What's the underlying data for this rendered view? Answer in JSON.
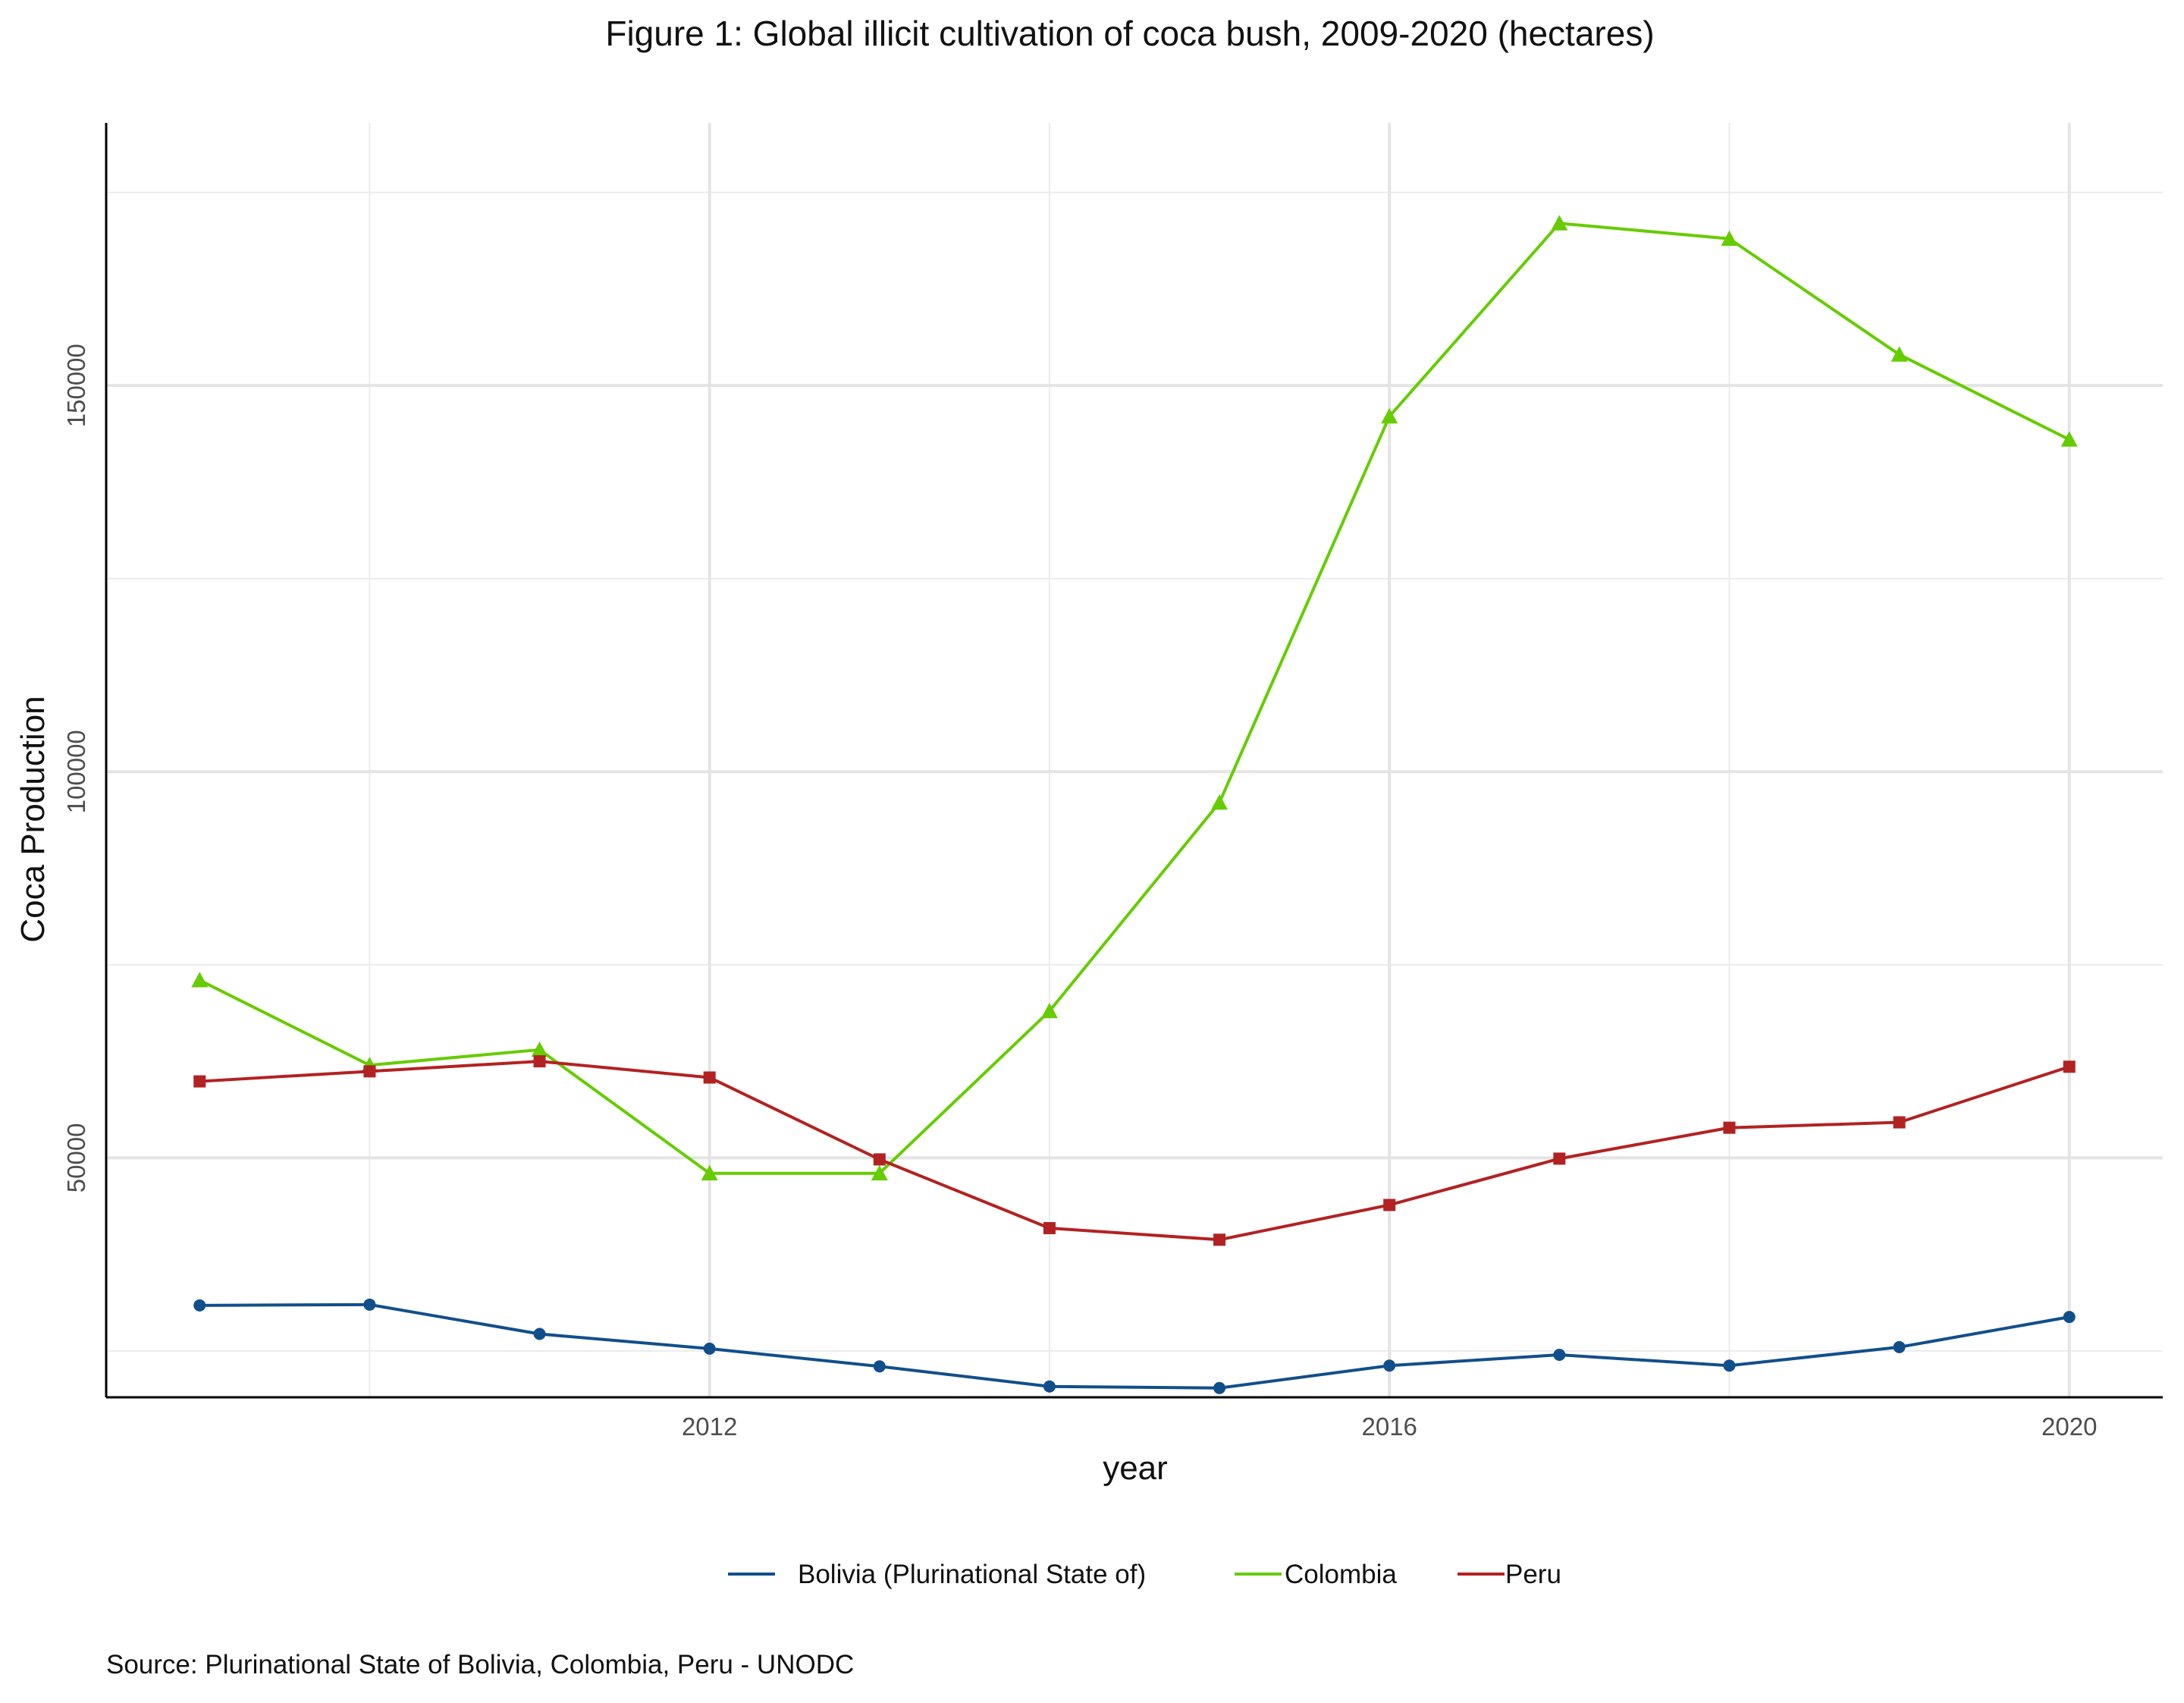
{
  "chart_data": {
    "type": "line",
    "title": "Figure 1: Global illicit cultivation of coca bush, 2009-2020 (hectares)",
    "xlabel": "year",
    "ylabel": "Coca Production",
    "x": [
      2009,
      2010,
      2011,
      2012,
      2013,
      2014,
      2015,
      2016,
      2017,
      2018,
      2019,
      2020
    ],
    "xlim": [
      2008.45,
      2020.55
    ],
    "ylim": [
      19000,
      184000
    ],
    "x_ticks": [
      2012,
      2016,
      2020
    ],
    "x_tick_labels": [
      "2012",
      "2016",
      "2020"
    ],
    "y_ticks": [
      50000,
      100000,
      150000
    ],
    "y_tick_labels": [
      "50000",
      "100000",
      "150000"
    ],
    "y_minor_ticks": [
      25000,
      75000,
      125000,
      175000
    ],
    "x_minor_ticks": [
      2010,
      2014,
      2018
    ],
    "grid": true,
    "legend_position": "bottom",
    "series": [
      {
        "name": "Bolivia (Plurinational State of)",
        "color": "#114f8a",
        "marker": "circle",
        "values": [
          30900,
          31000,
          27200,
          25300,
          23000,
          20400,
          20200,
          23100,
          24500,
          23100,
          25500,
          29400
        ]
      },
      {
        "name": "Colombia",
        "color": "#66cc00",
        "marker": "triangle",
        "values": [
          73000,
          62000,
          64000,
          48000,
          48000,
          69000,
          96000,
          146000,
          171000,
          169000,
          154000,
          143000
        ]
      },
      {
        "name": "Peru",
        "color": "#b22222",
        "marker": "square",
        "values": [
          59900,
          61200,
          62500,
          60400,
          49800,
          40900,
          39400,
          43900,
          49900,
          53900,
          54600,
          61800
        ]
      }
    ],
    "caption": "Source: Plurinational State of Bolivia, Colombia, Peru - UNODC"
  }
}
